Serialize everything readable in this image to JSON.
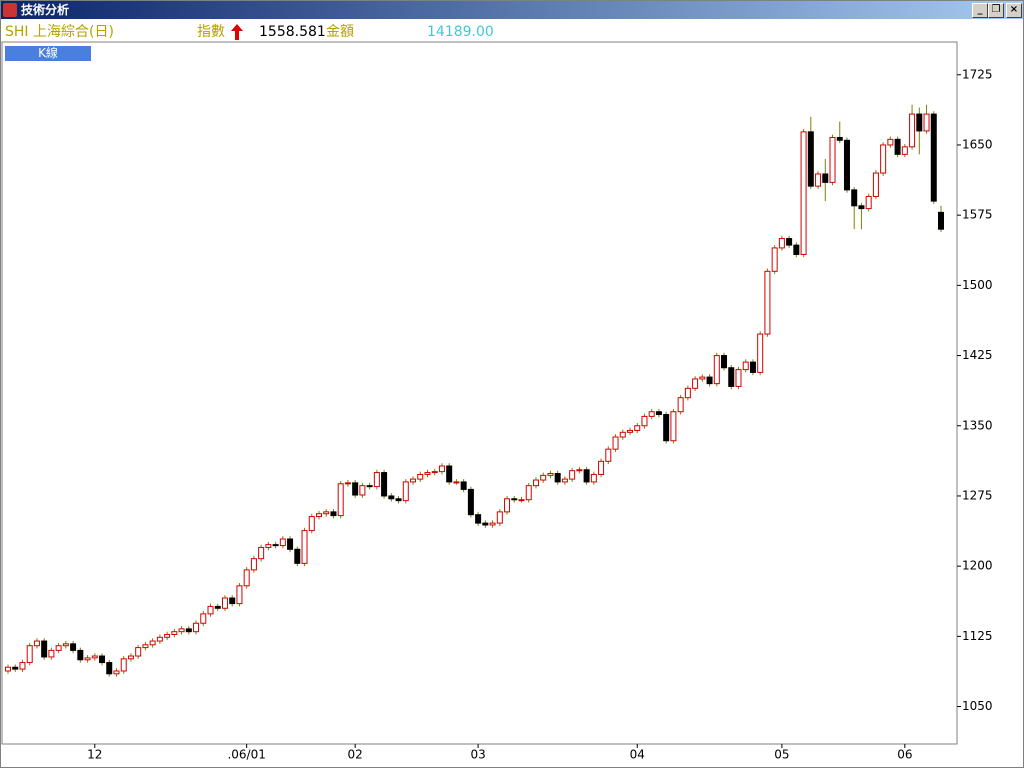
{
  "window": {
    "title": "技術分析"
  },
  "header": {
    "symbol": "SHI 上海綜合(日)",
    "index_label": "指數",
    "index_value": "1558.581",
    "amount_label": "金額",
    "amount_value": "14189.00"
  },
  "tab": {
    "label": "K線"
  },
  "chart_data": {
    "type": "candlestick",
    "categories": [
      null,
      null,
      null,
      null,
      null,
      null,
      null,
      null,
      null,
      null,
      null,
      null,
      "12",
      null,
      null,
      null,
      null,
      null,
      null,
      null,
      null,
      null,
      null,
      null,
      null,
      null,
      null,
      null,
      null,
      null,
      null,
      null,
      null,
      ".06/01",
      null,
      null,
      null,
      null,
      null,
      null,
      null,
      null,
      null,
      null,
      null,
      null,
      null,
      null,
      "02",
      null,
      null,
      null,
      null,
      null,
      null,
      null,
      null,
      null,
      null,
      null,
      null,
      null,
      null,
      null,
      null,
      "03",
      null,
      null,
      null,
      null,
      null,
      null,
      null,
      null,
      null,
      null,
      null,
      null,
      null,
      null,
      null,
      null,
      null,
      null,
      null,
      null,
      null,
      "04",
      null,
      null,
      null,
      null,
      null,
      null,
      null,
      null,
      null,
      null,
      null,
      null,
      null,
      null,
      null,
      null,
      null,
      null,
      null,
      "05",
      null,
      null,
      null,
      null,
      null,
      null,
      null,
      null,
      null,
      null,
      null,
      null,
      null,
      null,
      null,
      null,
      "06",
      null,
      null,
      null,
      null,
      null
    ],
    "open": [
      1088,
      1092,
      1090,
      1097,
      1115,
      1120,
      1103,
      1110,
      1115,
      1117,
      1110,
      1100,
      1102,
      1104,
      1097,
      1085,
      1088,
      1101,
      1104,
      1113,
      1116,
      1120,
      1124,
      1127,
      1130,
      1133,
      1130,
      1139,
      1149,
      1157,
      1155,
      1166,
      1160,
      1179,
      1196,
      1208,
      1220,
      1223,
      1222,
      1229,
      1218,
      1203,
      1238,
      1253,
      1256,
      1258,
      1254,
      1288,
      1289,
      1276,
      1286,
      1285,
      1300,
      1275,
      1272,
      1270,
      1290,
      1293,
      1298,
      1300,
      1301,
      1307,
      1290,
      1290,
      1282,
      1255,
      1246,
      1244,
      1246,
      1258,
      1272,
      1271,
      1271,
      1286,
      1292,
      1297,
      1299,
      1290,
      1293,
      1302,
      1303,
      1290,
      1298,
      1312,
      1325,
      1338,
      1343,
      1345,
      1350,
      1360,
      1365,
      1362,
      1334,
      1365,
      1380,
      1390,
      1400,
      1402,
      1395,
      1425,
      1412,
      1392,
      1410,
      1418,
      1407,
      1448,
      1515,
      1540,
      1550,
      1543,
      1533,
      1664,
      1606,
      1619,
      1610,
      1658,
      1655,
      1602,
      1585,
      1582,
      1595,
      1620,
      1650,
      1656,
      1640,
      1648,
      1683,
      1665,
      1683,
      1578
    ],
    "high": [
      1095,
      1095,
      1100,
      1118,
      1123,
      1123,
      1113,
      1118,
      1120,
      1120,
      1113,
      1105,
      1107,
      1107,
      1100,
      1091,
      1104,
      1107,
      1116,
      1119,
      1123,
      1127,
      1130,
      1133,
      1136,
      1136,
      1142,
      1152,
      1160,
      1160,
      1169,
      1169,
      1182,
      1199,
      1211,
      1223,
      1226,
      1226,
      1232,
      1232,
      1221,
      1241,
      1256,
      1259,
      1261,
      1261,
      1291,
      1292,
      1292,
      1289,
      1289,
      1303,
      1303,
      1278,
      1275,
      1293,
      1296,
      1301,
      1303,
      1304,
      1310,
      1310,
      1293,
      1293,
      1285,
      1258,
      1249,
      1249,
      1261,
      1275,
      1275,
      1274,
      1289,
      1295,
      1300,
      1302,
      1302,
      1296,
      1305,
      1306,
      1306,
      1301,
      1315,
      1328,
      1341,
      1346,
      1348,
      1353,
      1363,
      1368,
      1368,
      1365,
      1368,
      1383,
      1393,
      1403,
      1405,
      1405,
      1428,
      1428,
      1415,
      1413,
      1421,
      1421,
      1451,
      1518,
      1543,
      1553,
      1553,
      1546,
      1667,
      1680,
      1622,
      1635,
      1661,
      1675,
      1658,
      1605,
      1588,
      1598,
      1623,
      1653,
      1659,
      1659,
      1651,
      1693,
      1690,
      1693,
      1686,
      1585
    ],
    "low": [
      1085,
      1087,
      1087,
      1094,
      1112,
      1100,
      1100,
      1107,
      1112,
      1107,
      1097,
      1097,
      1099,
      1094,
      1082,
      1082,
      1085,
      1098,
      1101,
      1110,
      1113,
      1117,
      1121,
      1124,
      1127,
      1127,
      1127,
      1136,
      1146,
      1152,
      1152,
      1157,
      1157,
      1176,
      1193,
      1205,
      1217,
      1219,
      1219,
      1215,
      1200,
      1200,
      1235,
      1250,
      1253,
      1251,
      1251,
      1285,
      1273,
      1273,
      1282,
      1282,
      1272,
      1269,
      1267,
      1267,
      1287,
      1290,
      1295,
      1297,
      1298,
      1287,
      1287,
      1279,
      1252,
      1243,
      1241,
      1241,
      1243,
      1255,
      1268,
      1268,
      1268,
      1283,
      1289,
      1294,
      1287,
      1287,
      1290,
      1299,
      1287,
      1287,
      1295,
      1309,
      1322,
      1335,
      1340,
      1342,
      1347,
      1357,
      1359,
      1331,
      1331,
      1362,
      1377,
      1387,
      1397,
      1392,
      1392,
      1409,
      1389,
      1389,
      1407,
      1404,
      1404,
      1445,
      1512,
      1537,
      1540,
      1530,
      1530,
      1603,
      1603,
      1590,
      1607,
      1652,
      1599,
      1560,
      1560,
      1579,
      1592,
      1617,
      1647,
      1637,
      1637,
      1645,
      1640,
      1662,
      1587,
      1557
    ],
    "close": [
      1092,
      1090,
      1097,
      1115,
      1120,
      1103,
      1110,
      1115,
      1117,
      1110,
      1100,
      1102,
      1104,
      1097,
      1085,
      1088,
      1101,
      1104,
      1113,
      1116,
      1120,
      1124,
      1127,
      1130,
      1133,
      1130,
      1139,
      1149,
      1157,
      1155,
      1166,
      1160,
      1179,
      1196,
      1208,
      1220,
      1223,
      1222,
      1229,
      1218,
      1203,
      1238,
      1253,
      1256,
      1258,
      1254,
      1288,
      1289,
      1276,
      1286,
      1285,
      1300,
      1275,
      1272,
      1270,
      1290,
      1293,
      1298,
      1300,
      1301,
      1307,
      1290,
      1290,
      1282,
      1255,
      1246,
      1244,
      1246,
      1258,
      1272,
      1271,
      1271,
      1286,
      1292,
      1297,
      1299,
      1290,
      1293,
      1302,
      1303,
      1290,
      1298,
      1312,
      1325,
      1338,
      1343,
      1345,
      1350,
      1360,
      1365,
      1362,
      1334,
      1365,
      1380,
      1390,
      1400,
      1402,
      1395,
      1425,
      1412,
      1392,
      1410,
      1418,
      1407,
      1448,
      1515,
      1540,
      1550,
      1543,
      1533,
      1664,
      1606,
      1619,
      1610,
      1658,
      1655,
      1602,
      1585,
      1582,
      1595,
      1620,
      1650,
      1656,
      1640,
      1648,
      1683,
      1665,
      1683,
      1590,
      1560
    ],
    "up_color": "#d40000",
    "down_color": "#000000",
    "wick_color": "#808000",
    "ylim": [
      1010,
      1760
    ],
    "yticks": [
      1050,
      1125,
      1200,
      1275,
      1350,
      1425,
      1500,
      1575,
      1650,
      1725
    ]
  }
}
